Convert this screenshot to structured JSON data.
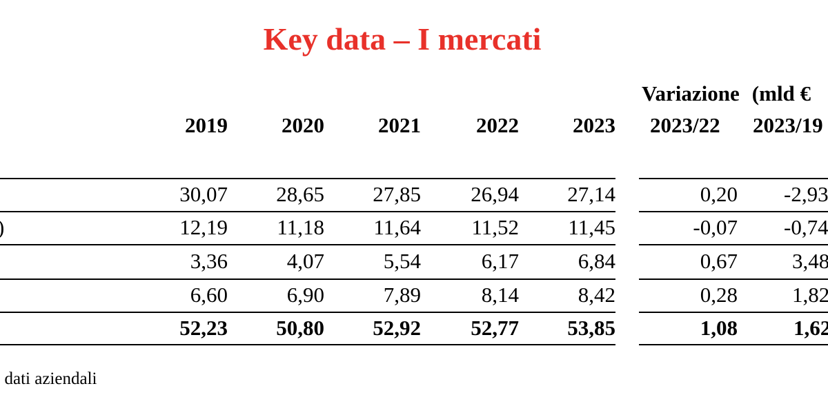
{
  "title": "Key data – I mercati",
  "variation_header": {
    "label": "Variazione",
    "unit": "(mld €"
  },
  "columns": [
    "2019",
    "2020",
    "2021",
    "2022",
    "2023",
    "2023/22",
    "2023/19"
  ],
  "rows": [
    {
      "label": "",
      "values": [
        "30,07",
        "28,65",
        "27,85",
        "26,94",
        "27,14",
        "0,20",
        "-2,93"
      ],
      "total": false
    },
    {
      "label": ")",
      "values": [
        "12,19",
        "11,18",
        "11,64",
        "11,52",
        "11,45",
        "-0,07",
        "-0,74"
      ],
      "total": false
    },
    {
      "label": "",
      "values": [
        "3,36",
        "4,07",
        "5,54",
        "6,17",
        "6,84",
        "0,67",
        "3,48"
      ],
      "total": false
    },
    {
      "label": "",
      "values": [
        "6,60",
        "6,90",
        "7,89",
        "8,14",
        "8,42",
        "0,28",
        "1,82"
      ],
      "total": false
    },
    {
      "label": "",
      "values": [
        "52,23",
        "50,80",
        "52,92",
        "52,77",
        "53,85",
        "1,08",
        "1,62"
      ],
      "total": true
    }
  ],
  "footnote": "dati aziendali"
}
